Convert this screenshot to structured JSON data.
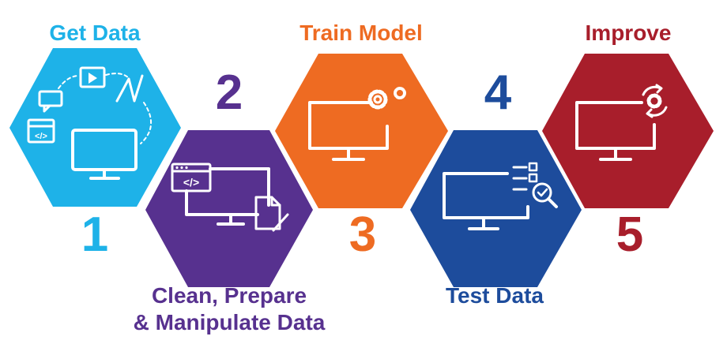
{
  "steps": [
    {
      "number": "1",
      "title": "Get Data",
      "color": "#1eb2e8",
      "icon": "monitor-with-sources-icon"
    },
    {
      "number": "2",
      "title_lines": [
        "Clean, Prepare",
        "& Manipulate Data"
      ],
      "color": "#57318f",
      "icon": "monitor-with-code-and-document-icon"
    },
    {
      "number": "3",
      "title": "Train Model",
      "color": "#ee6b22",
      "icon": "monitor-with-gears-icon"
    },
    {
      "number": "4",
      "title": "Test Data",
      "color": "#1d4c9c",
      "icon": "monitor-with-checklist-search-icon"
    },
    {
      "number": "5",
      "title": "Improve",
      "color": "#a81e2b",
      "icon": "monitor-with-refresh-gear-icon"
    }
  ]
}
